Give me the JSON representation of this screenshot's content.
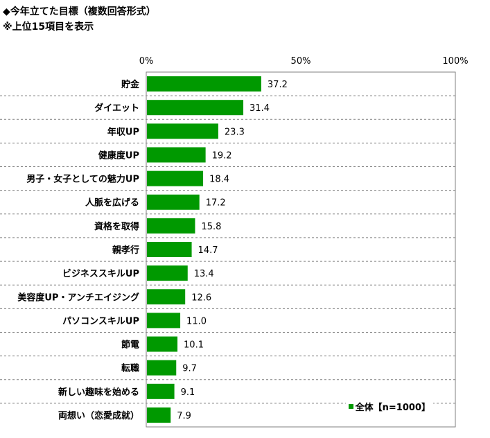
{
  "header": {
    "title": "◆今年立てた目標（複数回答形式）",
    "subtitle": "※上位15項目を表示"
  },
  "colors": {
    "bar": "#009900",
    "axis": "#7f7f7f",
    "gridline": "#7f7f7f"
  },
  "chart_data": {
    "type": "bar",
    "orientation": "horizontal",
    "categories": [
      "貯金",
      "ダイエット",
      "年収UP",
      "健康度UP",
      "男子・女子としての魅力UP",
      "人脈を広げる",
      "資格を取得",
      "親孝行",
      "ビジネススキルUP",
      "美容度UP・アンチエイジング",
      "パソコンスキルUP",
      "節電",
      "転職",
      "新しい趣味を始める",
      "両想い（恋愛成就）"
    ],
    "series": [
      {
        "name": "全体【n=1000】",
        "values": [
          37.2,
          31.4,
          23.3,
          19.2,
          18.4,
          17.2,
          15.8,
          14.7,
          13.4,
          12.6,
          11.0,
          10.1,
          9.7,
          9.1,
          7.9
        ],
        "labels": [
          "37.2",
          "31.4",
          "23.3",
          "19.2",
          "18.4",
          "17.2",
          "15.8",
          "14.7",
          "13.4",
          "12.6",
          "11.0",
          "10.1",
          "9.7",
          "9.1",
          "7.9"
        ]
      }
    ],
    "xlim": [
      0,
      100
    ],
    "xticks": [
      "0%",
      "50%",
      "100%"
    ],
    "xtick_values": [
      0,
      50,
      100
    ],
    "grid": "dashed horizontal separators",
    "legend_position": "bottom-right"
  }
}
